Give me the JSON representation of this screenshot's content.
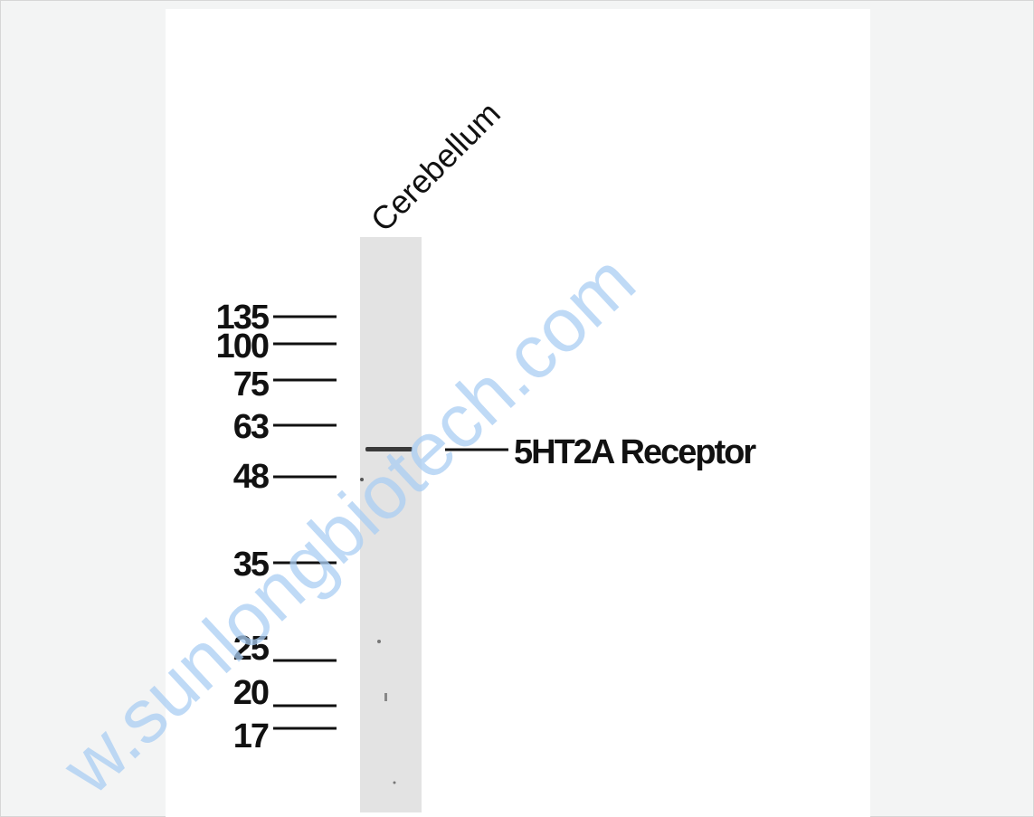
{
  "lane_label": "Cerebellum",
  "markers": [
    "135",
    "100",
    "75",
    "63",
    "48",
    "35",
    "25",
    "20",
    "17"
  ],
  "band_label": "5HT2A Receptor",
  "watermark": "w.sunlongbiotech.com"
}
